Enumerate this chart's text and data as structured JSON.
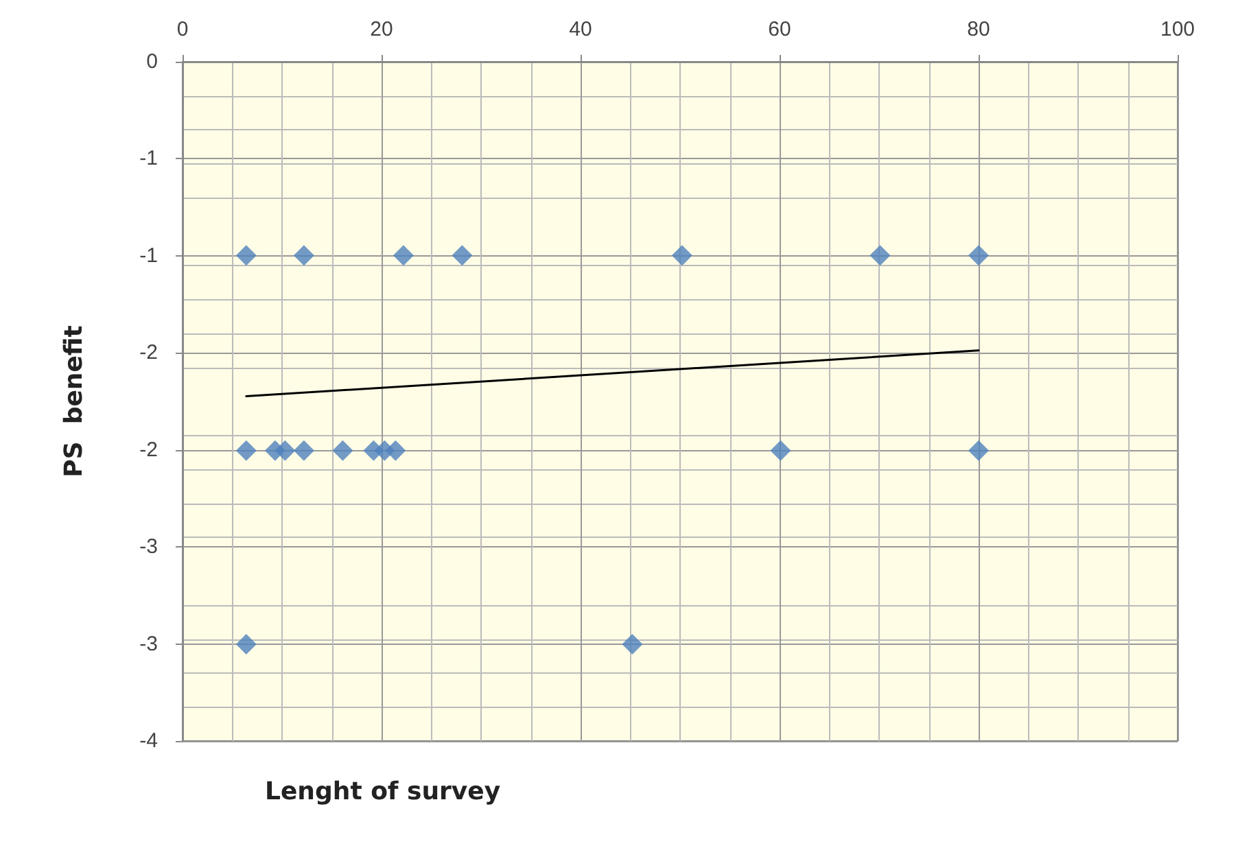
{
  "chart_data": {
    "type": "scatter",
    "xlabel": "Lenght of survey",
    "ylabel": "PS  benefit",
    "xlim": [
      0,
      100
    ],
    "xticks": [
      0,
      20,
      40,
      60,
      80,
      100
    ],
    "ylim": [
      -4,
      0
    ],
    "yticks": [
      {
        "value": 0,
        "label": "0"
      },
      {
        "value": -0.571,
        "label": "-1"
      },
      {
        "value": -1.143,
        "label": "-1"
      },
      {
        "value": -1.714,
        "label": "-2"
      },
      {
        "value": -2.286,
        "label": "-2"
      },
      {
        "value": -2.857,
        "label": "-3"
      },
      {
        "value": -3.429,
        "label": "-3"
      },
      {
        "value": -4,
        "label": "-4"
      }
    ],
    "grid": true,
    "marker": "diamond",
    "series": [
      {
        "color": "#4f81bd",
        "x": [
          6.4,
          12.2,
          22.2,
          28.1,
          50.2,
          70.1,
          80,
          6.4,
          9.3,
          10.3,
          12.2,
          16.1,
          19.2,
          20.3,
          21.4,
          60.1,
          80,
          6.4,
          45.2
        ],
        "values": [
          -1.14,
          -1.14,
          -1.14,
          -1.14,
          -1.14,
          -1.14,
          -1.14,
          -2.29,
          -2.29,
          -2.29,
          -2.29,
          -2.29,
          -2.29,
          -2.29,
          -2.29,
          -2.29,
          -2.29,
          -3.43,
          -3.43
        ]
      },
      {
        "type": "line",
        "color": "#000000",
        "marker": "none",
        "x": [
          6.4,
          80
        ],
        "values": [
          -1.97,
          -1.7
        ]
      }
    ]
  }
}
